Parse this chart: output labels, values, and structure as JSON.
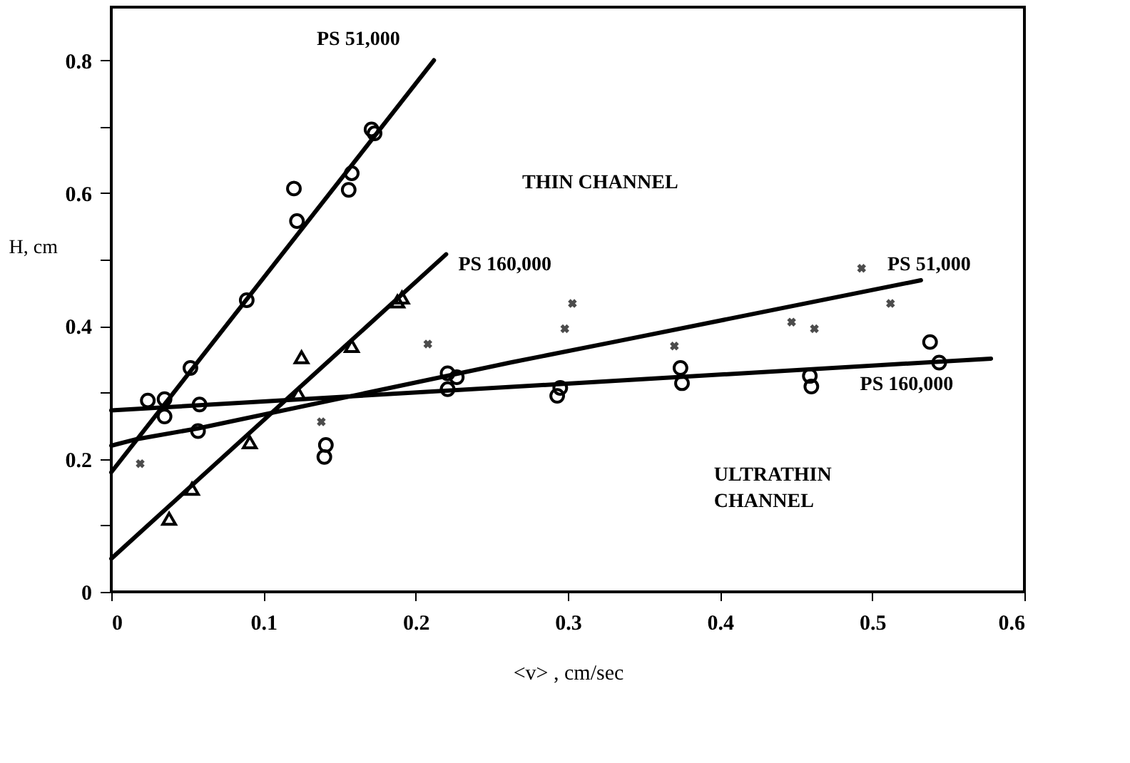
{
  "chart_data": {
    "type": "scatter",
    "xlabel": "<v> ,  cm/sec",
    "ylabel": "H, cm",
    "xlim": [
      0,
      0.6
    ],
    "ylim": [
      0,
      0.88
    ],
    "xticks": [
      0,
      0.1,
      0.2,
      0.3,
      0.4,
      0.5,
      0.6
    ],
    "yticks": [
      0,
      {
        "value": 0.1,
        "label": null
      },
      0.2,
      {
        "value": 0.3,
        "label": null
      },
      0.4,
      {
        "value": 0.5,
        "label": null
      },
      0.6,
      {
        "value": 0.7,
        "label": null
      },
      0.8
    ],
    "grid": false,
    "series": [
      {
        "marker": "circle",
        "color": "#000000",
        "x": [
          0.035,
          0.035,
          0.052,
          0.089,
          0.12,
          0.122,
          0.156,
          0.158,
          0.171,
          0.173
        ],
        "values": [
          0.264,
          0.29,
          0.337,
          0.439,
          0.607,
          0.558,
          0.605,
          0.63,
          0.696,
          0.69
        ]
      },
      {
        "type": "line",
        "color": "#000000",
        "x": [
          0,
          0.212
        ],
        "values": [
          0.18,
          0.8
        ]
      },
      {
        "marker": "triangle",
        "color": "#000000",
        "x": [
          0.038,
          0.053,
          0.091,
          0.123,
          0.125,
          0.158,
          0.188,
          0.191
        ],
        "values": [
          0.11,
          0.155,
          0.225,
          0.298,
          0.353,
          0.37,
          0.437,
          0.443
        ]
      },
      {
        "type": "line",
        "color": "#000000",
        "x": [
          0,
          0.22
        ],
        "values": [
          0.05,
          0.508
        ]
      },
      {
        "marker": "cross",
        "color": "#000000",
        "x": [
          0.019,
          0.138,
          0.208,
          0.298,
          0.303,
          0.37,
          0.447,
          0.462,
          0.493,
          0.512
        ],
        "values": [
          0.193,
          0.256,
          0.373,
          0.396,
          0.434,
          0.37,
          0.406,
          0.396,
          0.487,
          0.434
        ]
      },
      {
        "type": "line",
        "color": "#000000",
        "x": [
          0,
          0.017,
          0.057,
          0.262,
          0.33,
          0.532
        ],
        "values": [
          0.22,
          0.23,
          0.246,
          0.345,
          0.376,
          0.469
        ]
      },
      {
        "marker": "circle",
        "color": "#000000",
        "x": [
          0.024,
          0.058,
          0.057,
          0.141,
          0.14,
          0.221,
          0.227,
          0.221,
          0.295,
          0.293,
          0.374,
          0.375,
          0.459,
          0.46,
          0.538,
          0.544
        ],
        "values": [
          0.288,
          0.282,
          0.242,
          0.221,
          0.203,
          0.329,
          0.323,
          0.305,
          0.307,
          0.295,
          0.337,
          0.314,
          0.325,
          0.309,
          0.376,
          0.345
        ]
      },
      {
        "type": "line",
        "color": "#000000",
        "x": [
          0,
          0.578
        ],
        "values": [
          0.273,
          0.351
        ]
      }
    ],
    "annotations": [
      "PS 51,000",
      "THIN CHANNEL",
      "PS 160,000",
      "PS 51,000",
      "PS 160,000",
      "ULTRATHIN",
      "CHANNEL"
    ]
  }
}
